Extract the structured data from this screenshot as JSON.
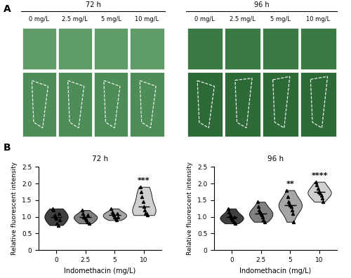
{
  "panel_labels": [
    "A",
    "B"
  ],
  "image_panel": {
    "groups": [
      {
        "time": "72 h",
        "columns": [
          "0 mg/L",
          "2.5 mg/L",
          "5 mg/L",
          "10 mg/L"
        ]
      },
      {
        "time": "96 h",
        "columns": [
          "0 mg/L",
          "2.5 mg/L",
          "5 mg/L",
          "10 mg/L"
        ]
      }
    ]
  },
  "chart_data": [
    {
      "type": "violin",
      "title": "72 h",
      "x_label": "Indomethacin (mg/L)",
      "y_label": "Relative fluorescent intensity",
      "categories": [
        "0",
        "2.5",
        "5",
        "10"
      ],
      "points": [
        [
          1.25,
          1.2,
          1.05,
          1.0,
          0.95,
          0.8,
          0.75,
          1.1,
          0.9
        ],
        [
          1.2,
          1.1,
          1.0,
          1.0,
          0.95,
          0.9,
          0.85,
          1.05,
          0.8
        ],
        [
          1.25,
          1.15,
          1.1,
          1.05,
          1.0,
          0.95,
          0.9,
          1.1,
          1.0
        ],
        [
          1.9,
          1.75,
          1.6,
          1.45,
          1.3,
          1.2,
          1.1,
          1.1,
          1.05
        ]
      ],
      "colors": [
        "#404040",
        "#808080",
        "#a6a6a6",
        "#d0d0d0"
      ],
      "marker": "triangle",
      "significance": [
        null,
        null,
        null,
        "***"
      ],
      "ylim": [
        0,
        2.5
      ],
      "yticks": [
        0,
        0.5,
        {
          "value": 1,
          "label": "1.0"
        },
        1.5,
        {
          "value": 2,
          "label": "2.0"
        },
        2.5
      ]
    },
    {
      "type": "violin",
      "title": "96 h",
      "x_label": "Indomethacin (mg/L)",
      "y_label": "Relative fluorescent intensity",
      "categories": [
        "0",
        "2.5",
        "5",
        "10"
      ],
      "points": [
        [
          1.25,
          1.15,
          1.05,
          1.0,
          0.95,
          0.9,
          0.85,
          1.0,
          0.8
        ],
        [
          1.45,
          1.3,
          1.2,
          1.15,
          1.1,
          1.05,
          1.0,
          0.9,
          0.85
        ],
        [
          1.8,
          1.6,
          1.45,
          1.4,
          1.35,
          1.3,
          1.2,
          1.1,
          0.85
        ],
        [
          2.05,
          1.95,
          1.85,
          1.75,
          1.75,
          1.7,
          1.65,
          1.55,
          1.45
        ]
      ],
      "colors": [
        "#404040",
        "#808080",
        "#a6a6a6",
        "#d0d0d0"
      ],
      "marker": "triangle",
      "significance": [
        null,
        null,
        "**",
        "****"
      ],
      "ylim": [
        0,
        2.5
      ],
      "yticks": [
        0,
        0.5,
        {
          "value": 1,
          "label": "1.0"
        },
        1.5,
        {
          "value": 2,
          "label": "2.0"
        },
        2.5
      ]
    }
  ]
}
